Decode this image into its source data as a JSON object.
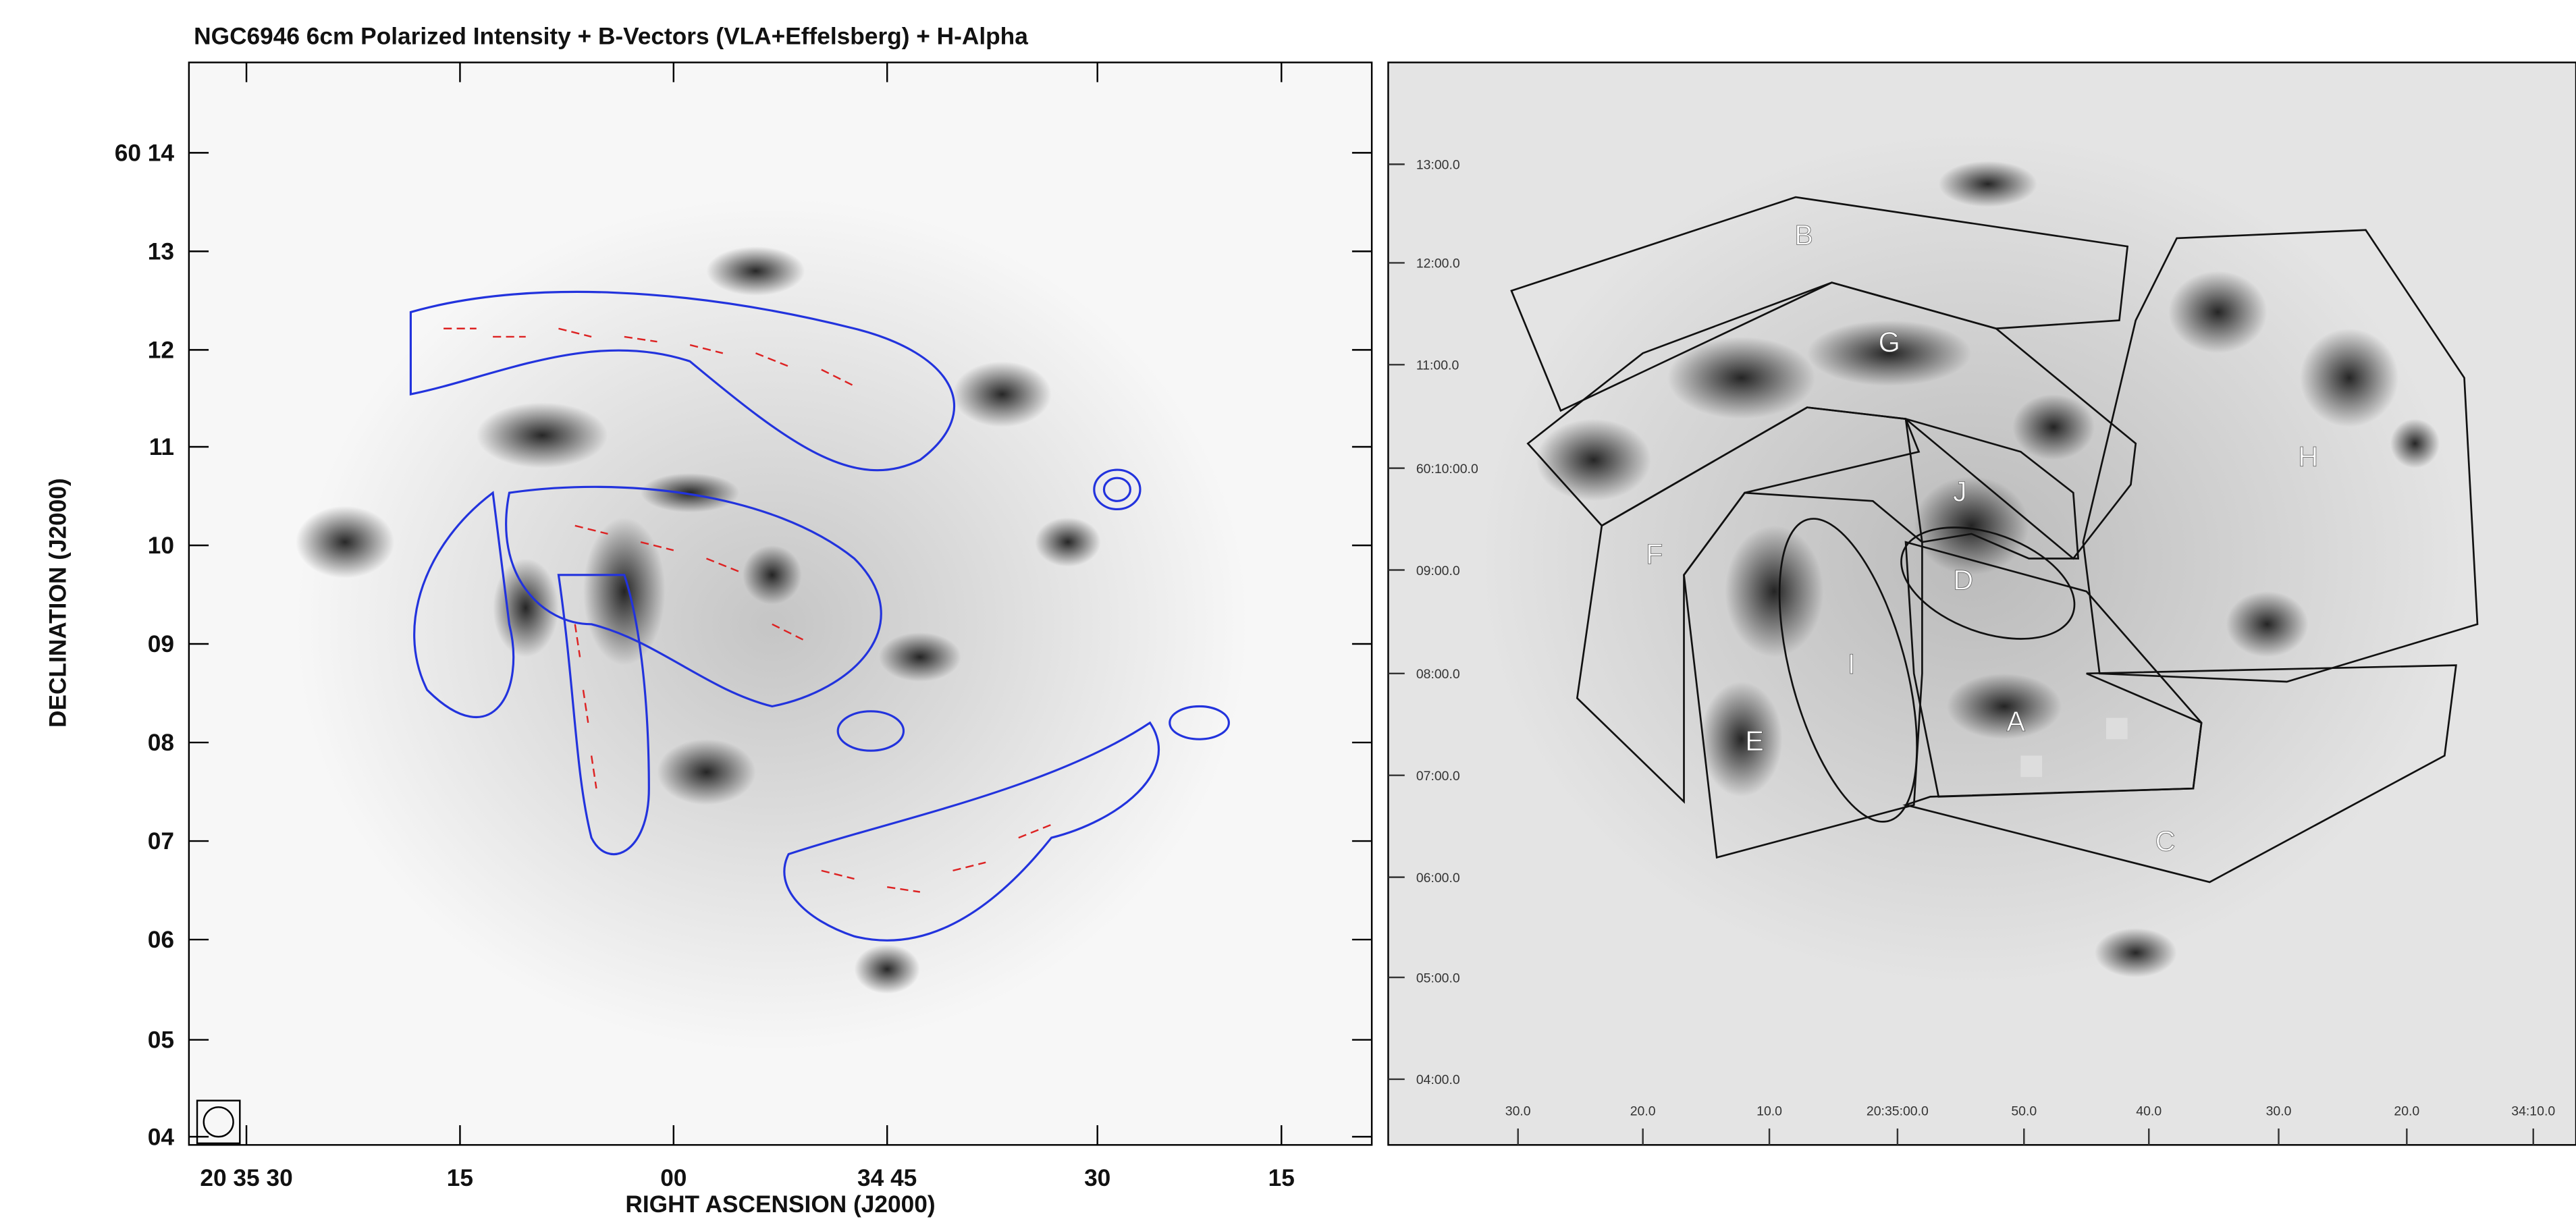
{
  "left_panel": {
    "title": "NGC6946  6cm Polarized Intensity + B-Vectors (VLA+Effelsberg) + H-Alpha",
    "y_axis_label": "DECLINATION (J2000)",
    "x_axis_label": "RIGHT ASCENSION (J2000)",
    "yticks": [
      "60 14",
      "13",
      "12",
      "11",
      "10",
      "09",
      "08",
      "07",
      "06",
      "05",
      "04"
    ],
    "xticks": [
      "20 35 30",
      "15",
      "00",
      "34 45",
      "30",
      "15"
    ]
  },
  "right_panel": {
    "region_labels": [
      "B",
      "G",
      "H",
      "F",
      "J",
      "D",
      "I",
      "A",
      "E",
      "C"
    ],
    "yticks": [
      "13:00.0",
      "12:00.0",
      "11:00.0",
      "60:10:00.0",
      "09:00.0",
      "08:00.0",
      "07:00.0",
      "06:00.0",
      "05:00.0",
      "04:00.0"
    ],
    "xticks": [
      "30.0",
      "20.0",
      "10.0",
      "20:35:00.0",
      "50.0",
      "40.0",
      "30.0",
      "20.0",
      "34:10.0"
    ]
  }
}
